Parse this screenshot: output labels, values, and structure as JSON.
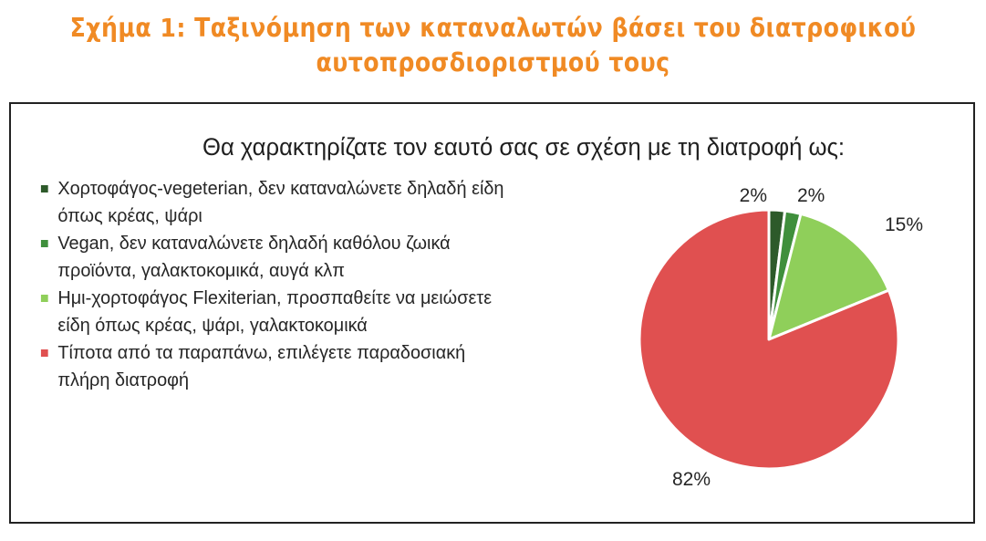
{
  "figure": {
    "title_line1": "Σχήμα 1: Ταξινόμηση των καταναλωτών βάσει του διατροφικού",
    "title_line2": "αυτοπροσδιοριστμού τους",
    "title_color": "#f08a24"
  },
  "chart_data": {
    "type": "pie",
    "title": "Θα χαρακτηρίζατε τον εαυτό σας σε σχέση με τη διατροφή ως:",
    "legend_position": "left",
    "slices": [
      {
        "label": "Χορτοφάγος-vegeterian, δεν καταναλώνετε δηλαδή είδη όπως κρέας, ψάρι",
        "value": 2,
        "value_label": "2%",
        "color": "#2d5a2a"
      },
      {
        "label": "Vegan, δεν καταναλώνετε δηλαδή καθόλου ζωικά προϊόντα, γαλακτοκομικά, αυγά κλπ",
        "value": 2,
        "value_label": "2%",
        "color": "#3f8f3c"
      },
      {
        "label": "Ημι-χορτοφάγος Flexiterian, προσπαθείτε να μειώσετε είδη όπως κρέας, ψάρι, γαλακτοκομικά",
        "value": 15,
        "value_label": "15%",
        "color": "#8fcf5a"
      },
      {
        "label": "Τίποτα από τα παραπάνω, επιλέγετε παραδοσιακή πλήρη διατροφή",
        "value": 82,
        "value_label": "82%",
        "color": "#e05050"
      }
    ]
  }
}
